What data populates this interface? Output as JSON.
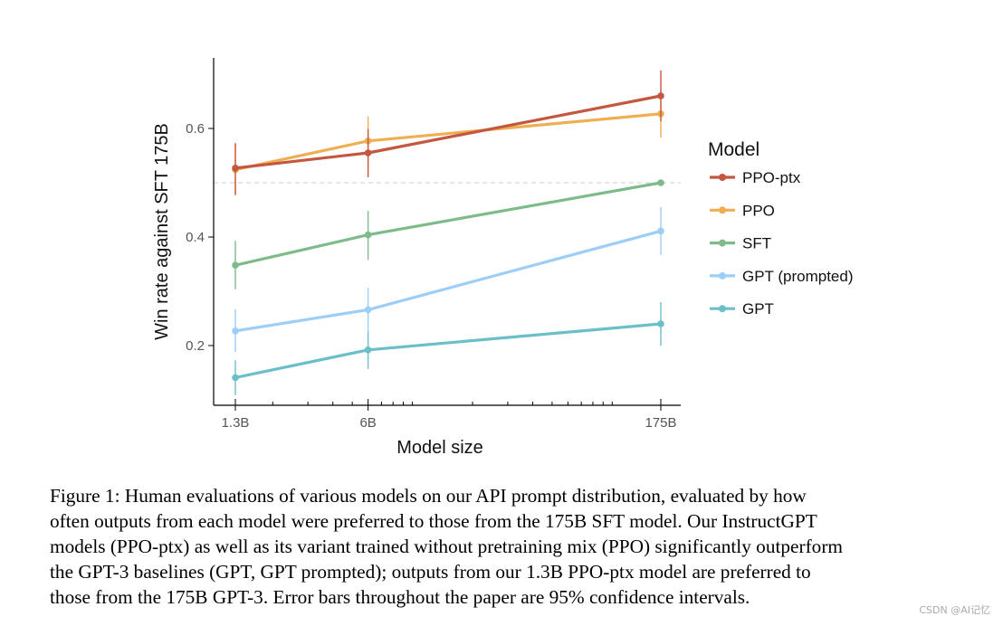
{
  "chart_data": {
    "type": "line",
    "title": "",
    "xlabel": "Model size",
    "ylabel": "Win rate against SFT 175B",
    "x_scale": "log",
    "x_params": [
      1.3,
      6,
      175
    ],
    "categories": [
      "1.3B",
      "6B",
      "175B"
    ],
    "yticks": [
      0.2,
      0.4,
      0.6
    ],
    "ytick_labels": [
      "0.2",
      "0.4",
      "0.6"
    ],
    "ylim": [
      0.09,
      0.73
    ],
    "reference_line": 0.5,
    "legend_title": "Model",
    "legend_position": "right",
    "series": [
      {
        "name": "PPO-ptx",
        "color": "#C4573F",
        "values": [
          0.527,
          0.555,
          0.66
        ],
        "ci_low": [
          0.478,
          0.51,
          0.613
        ],
        "ci_high": [
          0.573,
          0.599,
          0.707
        ]
      },
      {
        "name": "PPO",
        "color": "#F0AE53",
        "values": [
          0.524,
          0.577,
          0.627
        ],
        "ci_low": [
          0.476,
          0.53,
          0.583
        ],
        "ci_high": [
          0.572,
          0.622,
          0.668
        ]
      },
      {
        "name": "SFT",
        "color": "#7DBB8A",
        "values": [
          0.348,
          0.404,
          0.5
        ],
        "ci_low": [
          0.304,
          0.358,
          0.5
        ],
        "ci_high": [
          0.393,
          0.448,
          0.5
        ]
      },
      {
        "name": "GPT (prompted)",
        "color": "#9CCEF8",
        "values": [
          0.227,
          0.266,
          0.411
        ],
        "ci_low": [
          0.188,
          0.226,
          0.367
        ],
        "ci_high": [
          0.267,
          0.306,
          0.455
        ]
      },
      {
        "name": "GPT",
        "color": "#6BBFC8",
        "values": [
          0.141,
          0.192,
          0.24
        ],
        "ci_low": [
          0.109,
          0.157,
          0.2
        ],
        "ci_high": [
          0.173,
          0.227,
          0.28
        ]
      }
    ]
  },
  "caption": {
    "lines": [
      "Figure 1: Human evaluations of various models on our API prompt distribution, evaluated by how",
      "often outputs from each model were preferred to those from the 175B SFT model. Our InstructGPT",
      "models (PPO-ptx) as well as its variant trained without pretraining mix (PPO) significantly outperform",
      "the GPT-3 baselines (GPT, GPT prompted); outputs from our 1.3B PPO-ptx model are preferred to",
      "those from the 175B GPT-3. Error bars throughout the paper are 95% confidence intervals."
    ]
  },
  "watermark": "CSDN @AI记忆"
}
